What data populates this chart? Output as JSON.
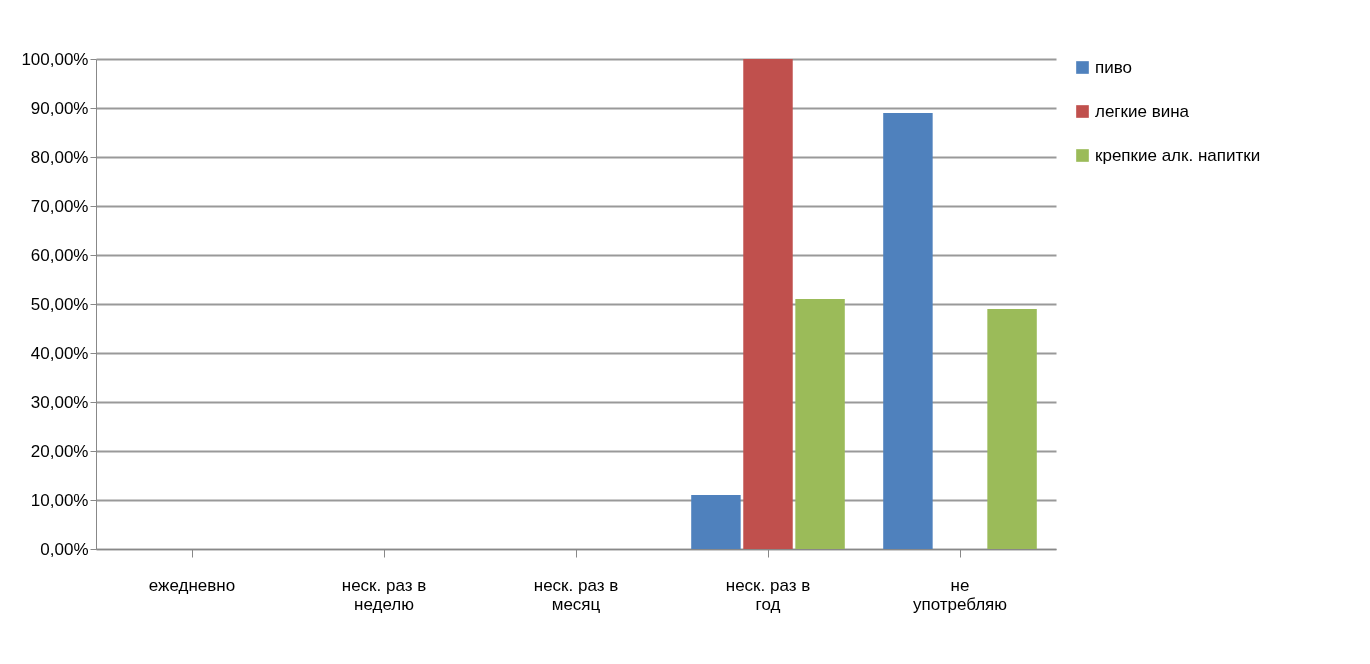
{
  "chart_data": {
    "type": "bar",
    "categories": [
      "ежедневно",
      "неск. раз в неделю",
      "неск. раз в месяц",
      "неск. раз в год",
      "не употребляю"
    ],
    "series": [
      {
        "name": "пиво",
        "color": "#4f81bd",
        "values": [
          0,
          0,
          0,
          11,
          89
        ]
      },
      {
        "name": "легкие вина",
        "color": "#c0504d",
        "values": [
          0,
          0,
          0,
          100,
          0
        ]
      },
      {
        "name": "крепкие алк. напитки",
        "color": "#9bbb59",
        "values": [
          0,
          0,
          0,
          51,
          49
        ]
      }
    ],
    "ylim": [
      0,
      100
    ],
    "yticks": [
      {
        "value": 0,
        "label": "0,00%"
      },
      {
        "value": 10,
        "label": "10,00%"
      },
      {
        "value": 20,
        "label": "20,00%"
      },
      {
        "value": 30,
        "label": "30,00%"
      },
      {
        "value": 40,
        "label": "40,00%"
      },
      {
        "value": 50,
        "label": "50,00%"
      },
      {
        "value": 60,
        "label": "60,00%"
      },
      {
        "value": 70,
        "label": "70,00%"
      },
      {
        "value": 80,
        "label": "80,00%"
      },
      {
        "value": 90,
        "label": "90,00%"
      },
      {
        "value": 100,
        "label": "100,00%"
      }
    ],
    "grid": "y",
    "legend": "right"
  }
}
